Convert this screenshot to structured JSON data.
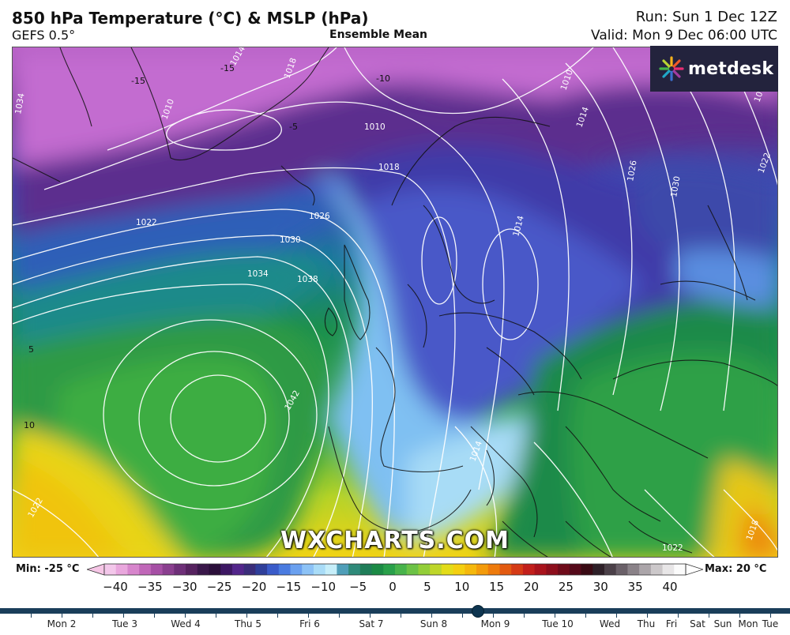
{
  "header": {
    "title": "850 hPa Temperature (°C) & MSLP (hPa)",
    "model": "GEFS 0.5°",
    "ensemble": "Ensemble Mean",
    "run": "Run: Sun 1 Dec 12Z",
    "valid": "Valid: Mon 9 Dec 06:00 UTC"
  },
  "logo": {
    "text": "metdesk",
    "icon": "metdesk-burst-icon"
  },
  "watermark": "WXCHARTS.COM",
  "map": {
    "isobar_labels": [
      "1014",
      "1018",
      "1010",
      "1010",
      "1018",
      "1014",
      "1022",
      "1030",
      "1026",
      "1030",
      "1034",
      "1038",
      "1042",
      "1022",
      "1022",
      "1026",
      "1034",
      "1014",
      "1010",
      "1018",
      "1022",
      "1014",
      "1018"
    ],
    "temp_labels": [
      "-15",
      "-15",
      "-10",
      "-5",
      "5",
      "10"
    ]
  },
  "legend": {
    "min_label": "Min: -25 °C",
    "max_label": "Max: 20 °C",
    "ticks": [
      "−40",
      "−35",
      "−30",
      "−25",
      "−20",
      "−15",
      "−10",
      "−5",
      "0",
      "5",
      "10",
      "15",
      "20",
      "25",
      "30",
      "35",
      "40"
    ],
    "colors": [
      "#f3c7ea",
      "#e9a7dd",
      "#d785cc",
      "#c067b8",
      "#a64fa5",
      "#8a3f8f",
      "#6e2f78",
      "#56225f",
      "#3a174a",
      "#2b0f3a",
      "#3d1763",
      "#53268b",
      "#3a2d7a",
      "#2f3f9a",
      "#3a5bc9",
      "#4a7be0",
      "#6aa0ef",
      "#8cc2f6",
      "#a9dcf7",
      "#c6eef9",
      "#4f9eb8",
      "#2f8a7a",
      "#1f7d58",
      "#1b8a45",
      "#29a04a",
      "#48b34b",
      "#6cc246",
      "#93ce38",
      "#bed62a",
      "#e3dc18",
      "#f4cf10",
      "#f5b80c",
      "#f39b0b",
      "#ee7b0c",
      "#e35a10",
      "#d53a15",
      "#c21f1b",
      "#a9131c",
      "#8d0e1c",
      "#6f0b1a",
      "#55091a",
      "#3a0a14",
      "#2e2028",
      "#4b4048",
      "#6a6068",
      "#8a8288",
      "#aba5a9",
      "#ccc8ca",
      "#e8e6e7",
      "#fbfbfb"
    ]
  },
  "timeline": {
    "labels": [
      "Mon 2",
      "Tue 3",
      "Wed 4",
      "Thu 5",
      "Fri 6",
      "Sat 7",
      "Sun 8",
      "Mon 9",
      "Tue 10",
      "Wed",
      "Thu",
      "Fri",
      "Sat",
      "Sun",
      "Mon",
      "Tue"
    ],
    "selected": "Mon 9"
  }
}
